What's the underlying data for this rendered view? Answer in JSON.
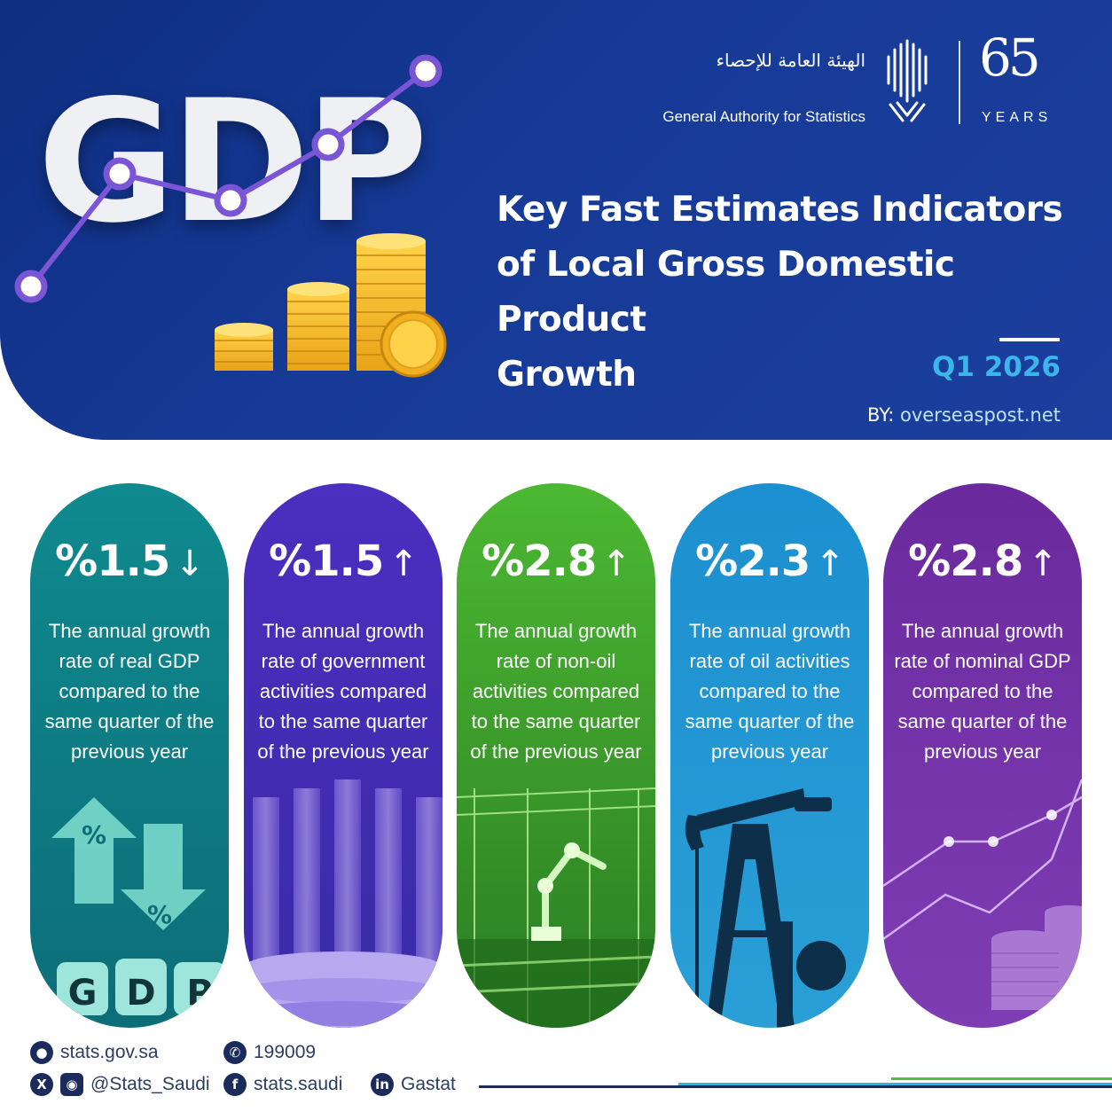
{
  "header": {
    "hero_text": "GDP",
    "org_name_ar": "الهيئة العامة للإحصاء",
    "org_name_en": "General Authority for Statistics",
    "anniversary_number": "65",
    "anniversary_label": "YEARS",
    "title_lines": [
      "Key Fast Estimates Indicators",
      "of Local Gross Domestic Product",
      "Growth"
    ],
    "period": "Q1 2026",
    "byline_prefix": "BY:",
    "byline_site": "overseaspost.net"
  },
  "cards": [
    {
      "value": "%1.5",
      "trend": "down",
      "arrow": "↓",
      "description": "The annual growth rate of real GDP compared to the same quarter of the previous year",
      "art_icon": "gdp-blocks-percent-arrows-icon",
      "color_top": "#0f8a8f",
      "color_bottom": "#0d6d78"
    },
    {
      "value": "%1.5",
      "trend": "up",
      "arrow": "↑",
      "description": "The annual growth rate of government activities compared to the same quarter of the previous year",
      "art_icon": "government-columns-icon",
      "color_top": "#4b2fc0",
      "color_bottom": "#3a2aa6"
    },
    {
      "value": "%2.8",
      "trend": "up",
      "arrow": "↑",
      "description": "The annual growth rate of non-oil activities compared to the same quarter of the previous year",
      "art_icon": "factory-robot-arm-icon",
      "color_top": "#4cb832",
      "color_bottom": "#2b7d24"
    },
    {
      "value": "%2.3",
      "trend": "up",
      "arrow": "↑",
      "description": "The annual growth rate of oil activities compared to the same quarter of the previous year",
      "art_icon": "oil-pumpjack-icon",
      "color_top": "#1c8fd0",
      "color_bottom": "#2a9fd6"
    },
    {
      "value": "%2.8",
      "trend": "up",
      "arrow": "↑",
      "description": "The annual growth rate of nominal GDP compared to the same quarter of the previous year",
      "art_icon": "coins-growth-chart-icon",
      "color_top": "#6a2a9e",
      "color_bottom": "#7f3db3"
    }
  ],
  "footer": {
    "website": "stats.gov.sa",
    "phone": "199009",
    "social_handle": "@Stats_Saudi",
    "facebook": "stats.saudi",
    "linkedin": "Gastat"
  },
  "colors": {
    "header_bg": "#163a96",
    "accent_blue": "#3bb6ea",
    "accent_green": "#4cc043",
    "footer_text": "#2b3d63"
  }
}
